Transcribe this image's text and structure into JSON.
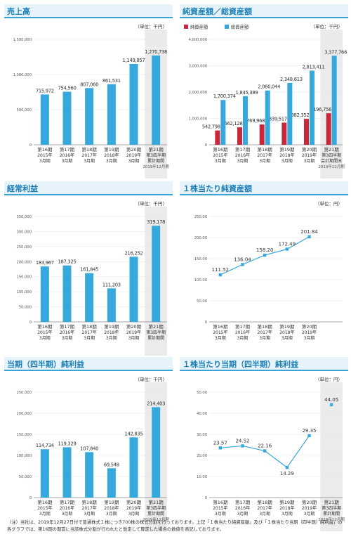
{
  "colors": {
    "blue": "#36a8dc",
    "red": "#c8283c",
    "highlight": "#ebebeb",
    "line": "#36a8dc"
  },
  "charts": [
    {
      "id": "sales",
      "title": "売上高",
      "unit": "（単位：千円）",
      "chart_data": {
        "type": "bar",
        "categories": [
          [
            "第16期",
            "2015年",
            "3月期"
          ],
          [
            "第17期",
            "2016年",
            "3月期"
          ],
          [
            "第18期",
            "2017年",
            "3月期"
          ],
          [
            "第19期",
            "2018年",
            "3月期"
          ],
          [
            "第20期",
            "2019年",
            "3月期"
          ],
          [
            "第21期",
            "第3四半期",
            "累計期間"
          ]
        ],
        "sub_note": "2019年12月期",
        "highlight_last": true,
        "series": [
          {
            "values": [
              715972,
              754560,
              807060,
              861531,
              1149857,
              1270736
            ],
            "labels": [
              "715,972",
              "754,560",
              "807,060",
              "861,531",
              "1,149,857",
              "1,270,736"
            ],
            "color": "blue"
          }
        ],
        "ylim": [
          0,
          1500000
        ],
        "yticks": [
          0,
          500000,
          1000000,
          1500000
        ],
        "ytick_labels": [
          "0",
          "500,000",
          "1,000,000",
          "1,500,000"
        ]
      }
    },
    {
      "id": "assets",
      "title": "純資産額／総資産額",
      "unit": "（単位：千円）",
      "chart_data": {
        "type": "bar",
        "categories": [
          [
            "第16期",
            "2015年",
            "3月期"
          ],
          [
            "第17期",
            "2016年",
            "3月期"
          ],
          [
            "第18期",
            "2017年",
            "3月期"
          ],
          [
            "第19期",
            "2018年",
            "3月期"
          ],
          [
            "第20期",
            "2019年",
            "3月期"
          ],
          [
            "第21期",
            "第3四半期",
            "会計期間末"
          ]
        ],
        "sub_note": "2019年12月期",
        "highlight_last": true,
        "legend": [
          "純資産額",
          "総資産額"
        ],
        "series": [
          {
            "name": "純資産額",
            "values": [
              542798,
              662128,
              769968,
              839517,
              982352,
              1196756
            ],
            "labels": [
              "542,798",
              "662,128",
              "769,968",
              "839,517",
              "982,352",
              "1,196,756"
            ],
            "color": "red"
          },
          {
            "name": "総資産額",
            "values": [
              1700374,
              1845389,
              2060044,
              2348613,
              2813411,
              3377766
            ],
            "labels": [
              "1,700,374",
              "1,845,389",
              "2,060,044",
              "2,348,613",
              "2,813,411",
              "3,377,766"
            ],
            "color": "blue"
          }
        ],
        "ylim": [
          0,
          4000000
        ],
        "yticks": [
          0,
          1000000,
          2000000,
          3000000,
          4000000
        ],
        "ytick_labels": [
          "0",
          "1,000,000",
          "2,000,000",
          "3,000,000",
          "4,000,000"
        ]
      }
    },
    {
      "id": "ordinary",
      "title": "経常利益",
      "unit": "（単位：千円）",
      "chart_data": {
        "type": "bar",
        "categories": [
          [
            "第16期",
            "2015年",
            "3月期"
          ],
          [
            "第17期",
            "2016年",
            "3月期"
          ],
          [
            "第18期",
            "2017年",
            "3月期"
          ],
          [
            "第19期",
            "2018年",
            "3月期"
          ],
          [
            "第20期",
            "2019年",
            "3月期"
          ],
          [
            "第21期",
            "第3四半期",
            "累計期間"
          ]
        ],
        "highlight_last": true,
        "series": [
          {
            "values": [
              183967,
              187325,
              161845,
              111203,
              216252,
              319178
            ],
            "labels": [
              "183,967",
              "187,325",
              "161,845",
              "111,203",
              "216,252",
              "319,178"
            ],
            "color": "blue"
          }
        ],
        "ylim": [
          0,
          350000
        ],
        "yticks": [
          0,
          50000,
          100000,
          150000,
          200000,
          250000,
          300000,
          350000
        ],
        "ytick_labels": [
          "0",
          "50,000",
          "100,000",
          "150,000",
          "200,000",
          "250,000",
          "300,000",
          "350,000"
        ]
      }
    },
    {
      "id": "bps",
      "title": "１株当たり純資産額",
      "unit": "（単位：円）",
      "chart_data": {
        "type": "line",
        "categories": [
          [
            "第16期",
            "2015年",
            "3月期"
          ],
          [
            "第17期",
            "2016年",
            "3月期"
          ],
          [
            "第18期",
            "2017年",
            "3月期"
          ],
          [
            "第19期",
            "2018年",
            "3月期"
          ],
          [
            "第20期",
            "2019年",
            "3月期"
          ]
        ],
        "highlight_last": false,
        "series": [
          {
            "values": [
              111.52,
              136.04,
              158.2,
              172.49,
              201.84
            ],
            "labels": [
              "111.52",
              "136.04",
              "158.20",
              "172.49",
              "201.84"
            ],
            "color": "line",
            "connect_upto": 4
          }
        ],
        "ylim": [
          0,
          250
        ],
        "yticks": [
          0,
          50,
          100,
          150,
          200,
          250
        ],
        "ytick_labels": [
          "0",
          "50.00",
          "100.00",
          "150.00",
          "200.00",
          "250.00"
        ]
      }
    },
    {
      "id": "net",
      "title": "当期（四半期）純利益",
      "unit": "（単位：千円）",
      "chart_data": {
        "type": "bar",
        "categories": [
          [
            "第16期",
            "2015年",
            "3月期"
          ],
          [
            "第17期",
            "2016年",
            "3月期"
          ],
          [
            "第18期",
            "2017年",
            "3月期"
          ],
          [
            "第19期",
            "2018年",
            "3月期"
          ],
          [
            "第20期",
            "2019年",
            "3月期"
          ],
          [
            "第21期",
            "第3四半期",
            "累計期間"
          ]
        ],
        "sub_note": "2019年12月期",
        "highlight_last": true,
        "series": [
          {
            "values": [
              114734,
              119329,
              107840,
              69548,
              142835,
              214403
            ],
            "labels": [
              "114,734",
              "119,329",
              "107,840",
              "69,548",
              "142,835",
              "214,403"
            ],
            "color": "blue"
          }
        ],
        "ylim": [
          0,
          250000
        ],
        "yticks": [
          0,
          50000,
          100000,
          150000,
          200000,
          250000
        ],
        "ytick_labels": [
          "0",
          "50,000",
          "100,000",
          "150,000",
          "200,000",
          "250,000"
        ]
      }
    },
    {
      "id": "eps",
      "title": "１株当たり当期（四半期）純利益",
      "unit": "（単位：円）",
      "chart_data": {
        "type": "line",
        "categories": [
          [
            "第16期",
            "2015年",
            "3月期"
          ],
          [
            "第17期",
            "2016年",
            "3月期"
          ],
          [
            "第18期",
            "2017年",
            "3月期"
          ],
          [
            "第19期",
            "2018年",
            "3月期"
          ],
          [
            "第20期",
            "2019年",
            "3月期"
          ],
          [
            "第21期",
            "第3四半期",
            "累計期間"
          ]
        ],
        "sub_note": "2019年12月期",
        "highlight_last": true,
        "series": [
          {
            "values": [
              23.57,
              24.52,
              22.16,
              14.29,
              29.35,
              44.05
            ],
            "labels": [
              "23.57",
              "24.52",
              "22.16",
              "14.29",
              "29.35",
              "44.05"
            ],
            "color": "line",
            "connect_upto": 4
          }
        ],
        "ylim": [
          0,
          50
        ],
        "yticks": [
          0,
          10,
          20,
          30,
          40,
          50
        ],
        "ytick_labels": [
          "0",
          "10.00",
          "20.00",
          "30.00",
          "40.00",
          "50.00"
        ]
      }
    }
  ],
  "footnote": "（注）当社は、2019年12月27日付で普通株式１株につき700株の株式分割を行っております。上記「１株当たり純資産額」及び「１株当たり当期（四半期）純利益」の各グラフでは、第16期の期首に当該株式分割が行われたと仮定して算定した場合の数値を表記しております。"
}
